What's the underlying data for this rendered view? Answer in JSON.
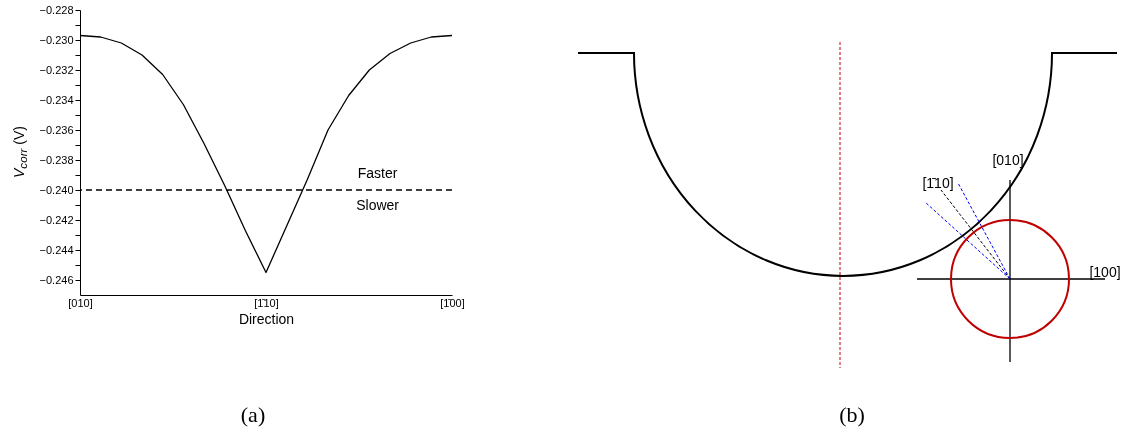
{
  "chart_data": [
    {
      "type": "line",
      "xlabel": "Direction",
      "ylabel": "V$_{corr}$ (V)",
      "categories": [
        "[010]",
        null,
        null,
        null,
        null,
        null,
        null,
        null,
        null,
        "[1̄10]",
        null,
        null,
        null,
        null,
        null,
        null,
        null,
        null,
        "[1̄00]"
      ],
      "series": [
        {
          "color": "#000000",
          "values": [
            -0.2297,
            -0.2298,
            -0.2302,
            -0.231,
            -0.2323,
            -0.2343,
            -0.2369,
            -0.2397,
            -0.2427,
            -0.2455,
            -0.2424,
            -0.2393,
            -0.236,
            -0.2337,
            -0.232,
            -0.2309,
            -0.2302,
            -0.2298,
            -0.2297
          ]
        }
      ],
      "ylim": [
        -0.247,
        -0.228
      ],
      "yticks": [
        {
          "value": -0.246,
          "label": "−0.246"
        },
        {
          "value": -0.245,
          "label": null
        },
        {
          "value": -0.244,
          "label": "−0.244"
        },
        {
          "value": -0.243,
          "label": null
        },
        {
          "value": -0.242,
          "label": "−0.242"
        },
        {
          "value": -0.241,
          "label": null
        },
        {
          "value": -0.24,
          "label": "−0.240"
        },
        {
          "value": -0.239,
          "label": null
        },
        {
          "value": -0.238,
          "label": "−0.238"
        },
        {
          "value": -0.237,
          "label": null
        },
        {
          "value": -0.236,
          "label": "−0.236"
        },
        {
          "value": -0.235,
          "label": null
        },
        {
          "value": -0.234,
          "label": "−0.234"
        },
        {
          "value": -0.233,
          "label": null
        },
        {
          "value": -0.232,
          "label": "−0.232"
        },
        {
          "value": -0.231,
          "label": null
        },
        {
          "value": -0.23,
          "label": "−0.230"
        },
        {
          "value": -0.229,
          "label": null
        },
        {
          "value": -0.228,
          "label": "−0.228"
        }
      ],
      "ref_lines": [
        {
          "axis": "y",
          "value": -0.24,
          "line_style": "dashed",
          "color": "#000000"
        }
      ],
      "annotations": [
        "Faster",
        "Slower",
        "(a)"
      ]
    },
    {
      "type": "other",
      "annotations": [
        "[010]",
        "[1̄10]",
        "[100]",
        "(b)"
      ]
    }
  ]
}
